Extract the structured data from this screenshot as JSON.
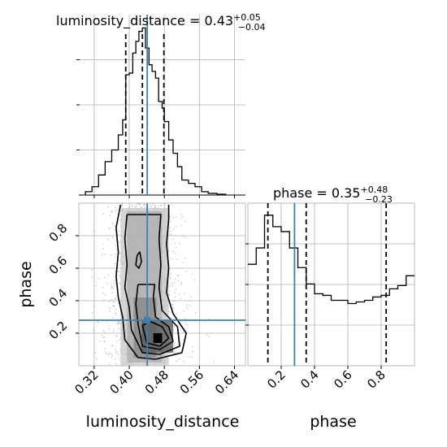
{
  "chart_data": {
    "type": "corner",
    "colors": {
      "truth": "#3f7fb2",
      "hist": "#000000",
      "contour": "#000000",
      "grid": "#b0b0b0",
      "samples": "#9a9a9a"
    },
    "params": {
      "luminosity_distance": {
        "label": "luminosity_distance",
        "range": [
          0.285,
          0.665
        ],
        "ticks": [
          0.32,
          0.4,
          0.48,
          0.56,
          0.64
        ],
        "tick_labels": [
          "0.32",
          "0.40",
          "0.48",
          "0.56",
          "0.64"
        ],
        "truth": 0.441,
        "quantiles": [
          0.392,
          0.43,
          0.479
        ],
        "title_prefix": "luminosity_distance = ",
        "title_value": "0.43",
        "title_plus": "+0.05",
        "title_minus": "−0.04",
        "hist_edges": [
          0.3,
          0.315,
          0.33,
          0.345,
          0.36,
          0.375,
          0.385,
          0.392,
          0.4,
          0.408,
          0.415,
          0.422,
          0.43,
          0.437,
          0.445,
          0.452,
          0.46,
          0.467,
          0.475,
          0.48,
          0.49,
          0.5,
          0.51,
          0.52,
          0.535,
          0.55,
          0.565,
          0.58,
          0.6,
          0.62
        ],
        "hist_values": [
          0.02,
          0.05,
          0.12,
          0.2,
          0.27,
          0.36,
          0.45,
          0.72,
          0.73,
          0.85,
          0.92,
          0.98,
          1.0,
          0.88,
          0.78,
          0.74,
          0.7,
          0.56,
          0.52,
          0.44,
          0.33,
          0.25,
          0.17,
          0.09,
          0.07,
          0.05,
          0.02,
          0.01,
          0.005
        ]
      },
      "phase": {
        "label": "phase",
        "range": [
          0.0,
          1.0
        ],
        "ticks": [
          0.2,
          0.4,
          0.6,
          0.8
        ],
        "tick_labels": [
          "0.2",
          "0.4",
          "0.6",
          "0.8"
        ],
        "truth": 0.28,
        "quantiles": [
          0.12,
          0.35,
          0.83
        ],
        "title_prefix": "phase = ",
        "title_value": "0.35",
        "title_plus": "+0.48",
        "title_minus": "−0.23",
        "hist_edges": [
          0.0,
          0.05,
          0.1,
          0.15,
          0.2,
          0.25,
          0.3,
          0.35,
          0.4,
          0.45,
          0.5,
          0.55,
          0.6,
          0.65,
          0.7,
          0.75,
          0.8,
          0.85,
          0.9,
          0.95,
          1.0
        ],
        "hist_values": [
          0.62,
          0.72,
          0.92,
          0.85,
          0.82,
          0.72,
          0.6,
          0.5,
          0.44,
          0.43,
          0.4,
          0.4,
          0.38,
          0.39,
          0.4,
          0.42,
          0.43,
          0.47,
          0.49,
          0.55
        ]
      }
    }
  }
}
